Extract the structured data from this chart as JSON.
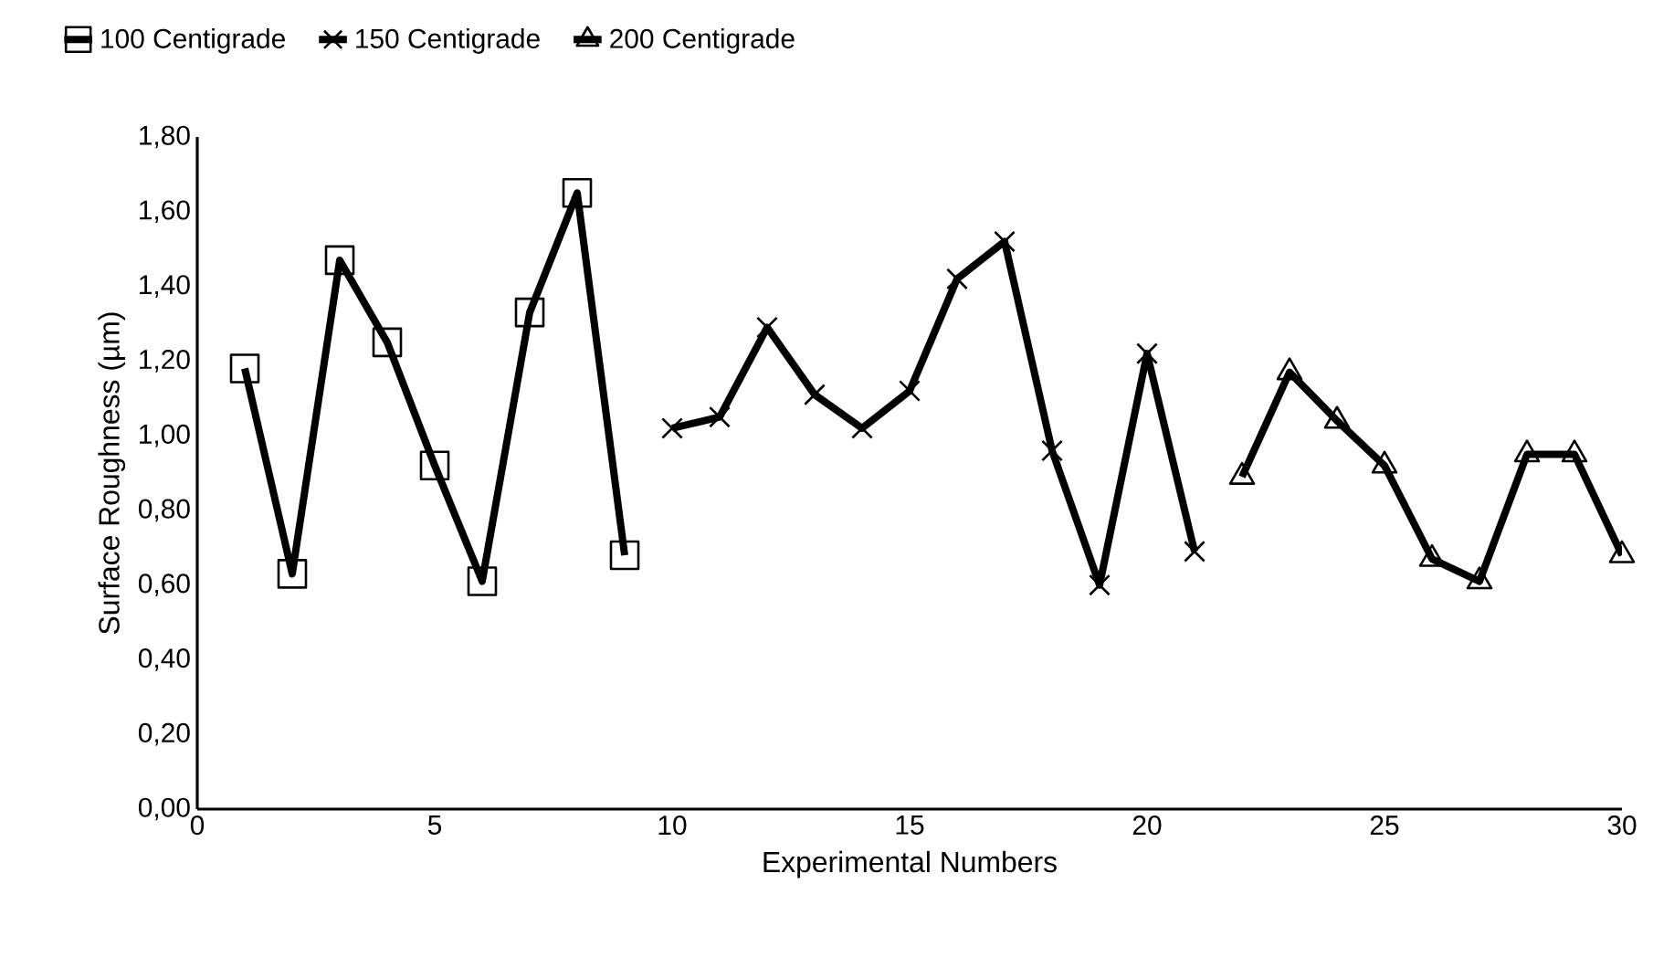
{
  "chart_data": {
    "type": "line",
    "xlabel": "Experimental Numbers",
    "ylabel": "Surface Roughness (µm)",
    "legend": "top left",
    "grid": false,
    "line_style": "solid",
    "xlim": [
      0,
      30
    ],
    "xticks": [
      0,
      5,
      10,
      15,
      20,
      25,
      30
    ],
    "ylim": [
      0,
      1.8
    ],
    "yticks": [
      {
        "value": 0,
        "label": "0,00"
      },
      {
        "value": 0.2,
        "label": "0,20"
      },
      {
        "value": 0.4,
        "label": "0,40"
      },
      {
        "value": 0.6,
        "label": "0,60"
      },
      {
        "value": 0.8,
        "label": "0,80"
      },
      {
        "value": 1.0,
        "label": "1,00"
      },
      {
        "value": 1.2,
        "label": "1,20"
      },
      {
        "value": 1.4,
        "label": "1,40"
      },
      {
        "value": 1.6,
        "label": "1,60"
      },
      {
        "value": 1.8,
        "label": "1,80"
      }
    ],
    "series": [
      {
        "name": "100 Centigrade",
        "color": "#000000",
        "marker": "square",
        "x": [
          1,
          2,
          3,
          4,
          5,
          6,
          7,
          8,
          9
        ],
        "values": [
          1.18,
          0.63,
          1.47,
          1.25,
          0.92,
          0.61,
          1.33,
          1.65,
          0.68
        ]
      },
      {
        "name": "150 Centigrade",
        "color": "#000000",
        "marker": "cross",
        "x": [
          10,
          11,
          12,
          13,
          14,
          15,
          16,
          17,
          18,
          19,
          20,
          21
        ],
        "values": [
          1.02,
          1.05,
          1.29,
          1.11,
          1.02,
          1.12,
          1.42,
          1.52,
          0.96,
          0.6,
          1.22,
          0.69
        ]
      },
      {
        "name": "200 Centigrade",
        "color": "#000000",
        "marker": "triangle",
        "x": [
          22,
          23,
          24,
          25,
          26,
          27,
          28,
          29,
          30
        ],
        "values": [
          0.89,
          1.17,
          1.04,
          0.92,
          0.67,
          0.61,
          0.95,
          0.95,
          0.68
        ]
      }
    ]
  }
}
